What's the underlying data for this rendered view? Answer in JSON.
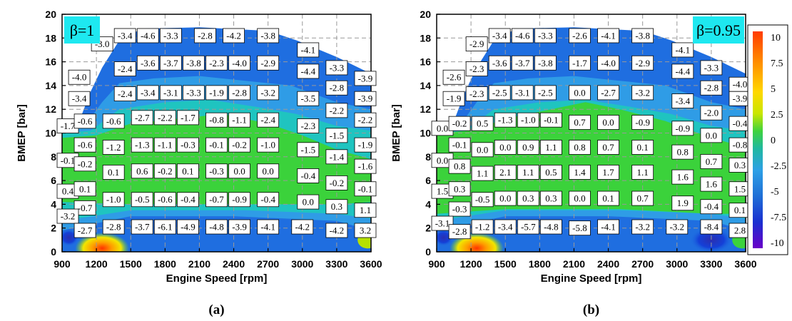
{
  "chart_data": [
    {
      "type": "heatmap",
      "panel_label": "(a)",
      "badge": "β=1",
      "xlabel": "Engine Speed [rpm]",
      "ylabel": "BMEP [bar]",
      "x_ticks": [
        "900",
        "1200",
        "1500",
        "1800",
        "2100",
        "2400",
        "2700",
        "3000",
        "3300",
        "3600"
      ],
      "y_ticks": [
        "0",
        "2",
        "4",
        "6",
        "8",
        "10",
        "12",
        "14",
        "16",
        "18",
        "20"
      ],
      "xlim": [
        900,
        3600
      ],
      "ylim": [
        0,
        20
      ],
      "cells": [
        {
          "x": 1250,
          "y": 17.5,
          "v": "-3.0"
        },
        {
          "x": 1450,
          "y": 18.2,
          "v": "-3.4"
        },
        {
          "x": 1650,
          "y": 18.2,
          "v": "-4.6"
        },
        {
          "x": 1850,
          "y": 18.2,
          "v": "-3.3"
        },
        {
          "x": 2150,
          "y": 18.2,
          "v": "-2.8"
        },
        {
          "x": 2400,
          "y": 18.2,
          "v": "-4.2"
        },
        {
          "x": 2700,
          "y": 18.2,
          "v": "-3.8"
        },
        {
          "x": 3050,
          "y": 17.0,
          "v": "-4.1"
        },
        {
          "x": 1450,
          "y": 15.4,
          "v": "-2.4"
        },
        {
          "x": 1650,
          "y": 15.9,
          "v": "-3.6"
        },
        {
          "x": 1850,
          "y": 15.9,
          "v": "-3.7"
        },
        {
          "x": 2050,
          "y": 15.9,
          "v": "-3.8"
        },
        {
          "x": 2250,
          "y": 15.9,
          "v": "-2.3"
        },
        {
          "x": 2450,
          "y": 15.9,
          "v": "-4.0"
        },
        {
          "x": 2700,
          "y": 15.9,
          "v": "-2.9"
        },
        {
          "x": 3050,
          "y": 15.2,
          "v": "-4.4"
        },
        {
          "x": 1050,
          "y": 14.7,
          "v": "-4.0"
        },
        {
          "x": 3300,
          "y": 15.5,
          "v": "-3.3"
        },
        {
          "x": 3550,
          "y": 14.6,
          "v": "-3.9"
        },
        {
          "x": 3300,
          "y": 13.8,
          "v": "-2.8"
        },
        {
          "x": 3550,
          "y": 12.9,
          "v": "-3.9"
        },
        {
          "x": 1050,
          "y": 12.9,
          "v": "-3.4"
        },
        {
          "x": 1450,
          "y": 13.3,
          "v": "-2.4"
        },
        {
          "x": 1650,
          "y": 13.4,
          "v": "-3.4"
        },
        {
          "x": 1850,
          "y": 13.4,
          "v": "-3.1"
        },
        {
          "x": 2050,
          "y": 13.4,
          "v": "-3.3"
        },
        {
          "x": 2250,
          "y": 13.4,
          "v": "-1.9"
        },
        {
          "x": 2450,
          "y": 13.4,
          "v": "-2.8"
        },
        {
          "x": 2700,
          "y": 13.4,
          "v": "-3.2"
        },
        {
          "x": 3050,
          "y": 12.9,
          "v": "-3.5"
        },
        {
          "x": 3300,
          "y": 11.9,
          "v": "-2.2"
        },
        {
          "x": 3550,
          "y": 11.1,
          "v": "-2.2"
        },
        {
          "x": 950,
          "y": 10.6,
          "v": "-1.7"
        },
        {
          "x": 1100,
          "y": 11.0,
          "v": "-0.6"
        },
        {
          "x": 1350,
          "y": 11.0,
          "v": "-0.6"
        },
        {
          "x": 1600,
          "y": 11.3,
          "v": "-2.7"
        },
        {
          "x": 1800,
          "y": 11.3,
          "v": "-2.2"
        },
        {
          "x": 2000,
          "y": 11.3,
          "v": "-1.7"
        },
        {
          "x": 2250,
          "y": 11.1,
          "v": "-0.8"
        },
        {
          "x": 2450,
          "y": 11.1,
          "v": "-1.1"
        },
        {
          "x": 2700,
          "y": 11.1,
          "v": "-2.4"
        },
        {
          "x": 3050,
          "y": 10.6,
          "v": "-2.3"
        },
        {
          "x": 3300,
          "y": 9.8,
          "v": "-1.5"
        },
        {
          "x": 3550,
          "y": 9.0,
          "v": "-1.9"
        },
        {
          "x": 1100,
          "y": 9.0,
          "v": "-0.6"
        },
        {
          "x": 1350,
          "y": 8.8,
          "v": "-1.2"
        },
        {
          "x": 1600,
          "y": 9.0,
          "v": "-1.3"
        },
        {
          "x": 1800,
          "y": 9.0,
          "v": "-1.1"
        },
        {
          "x": 2000,
          "y": 9.0,
          "v": "-0.3"
        },
        {
          "x": 2250,
          "y": 9.0,
          "v": "-0.1"
        },
        {
          "x": 2450,
          "y": 9.0,
          "v": "-0.2"
        },
        {
          "x": 2700,
          "y": 9.0,
          "v": "-1.0"
        },
        {
          "x": 3050,
          "y": 8.6,
          "v": "-1.5"
        },
        {
          "x": 3300,
          "y": 8.0,
          "v": "-1.4"
        },
        {
          "x": 3550,
          "y": 7.2,
          "v": "-1.6"
        },
        {
          "x": 950,
          "y": 7.7,
          "v": "-0.1"
        },
        {
          "x": 1100,
          "y": 7.4,
          "v": "-0.2"
        },
        {
          "x": 1350,
          "y": 6.7,
          "v": "0.1"
        },
        {
          "x": 1600,
          "y": 6.8,
          "v": "0.6"
        },
        {
          "x": 1800,
          "y": 6.8,
          "v": "-0.2"
        },
        {
          "x": 2000,
          "y": 6.8,
          "v": "0.1"
        },
        {
          "x": 2250,
          "y": 6.8,
          "v": "-0.3"
        },
        {
          "x": 2450,
          "y": 6.8,
          "v": "0.0"
        },
        {
          "x": 2700,
          "y": 6.8,
          "v": "0.0"
        },
        {
          "x": 3050,
          "y": 6.4,
          "v": "-0.4"
        },
        {
          "x": 3300,
          "y": 5.8,
          "v": "-0.2"
        },
        {
          "x": 3550,
          "y": 5.3,
          "v": "-0.1"
        },
        {
          "x": 950,
          "y": 5.1,
          "v": "0.4"
        },
        {
          "x": 1100,
          "y": 5.3,
          "v": "0.1"
        },
        {
          "x": 1350,
          "y": 4.4,
          "v": "-1.0"
        },
        {
          "x": 1600,
          "y": 4.4,
          "v": "-0.5"
        },
        {
          "x": 1800,
          "y": 4.4,
          "v": "-0.6"
        },
        {
          "x": 2000,
          "y": 4.4,
          "v": "-0.4"
        },
        {
          "x": 2250,
          "y": 4.4,
          "v": "-0.7"
        },
        {
          "x": 2450,
          "y": 4.4,
          "v": "-0.9"
        },
        {
          "x": 2700,
          "y": 4.4,
          "v": "-0.4"
        },
        {
          "x": 3050,
          "y": 4.2,
          "v": "0.0"
        },
        {
          "x": 3300,
          "y": 3.8,
          "v": "0.3"
        },
        {
          "x": 3550,
          "y": 3.5,
          "v": "1.1"
        },
        {
          "x": 1100,
          "y": 3.7,
          "v": "-0.7"
        },
        {
          "x": 950,
          "y": 3.0,
          "v": "-3.2"
        },
        {
          "x": 1100,
          "y": 1.8,
          "v": "-2.7"
        },
        {
          "x": 1350,
          "y": 2.1,
          "v": "-2.8"
        },
        {
          "x": 1600,
          "y": 2.1,
          "v": "-3.7"
        },
        {
          "x": 1800,
          "y": 2.1,
          "v": "-6.1"
        },
        {
          "x": 2000,
          "y": 2.1,
          "v": "-4.9"
        },
        {
          "x": 2250,
          "y": 2.1,
          "v": "-4.8"
        },
        {
          "x": 2450,
          "y": 2.1,
          "v": "-3.9"
        },
        {
          "x": 2700,
          "y": 2.1,
          "v": "-4.1"
        },
        {
          "x": 3000,
          "y": 2.1,
          "v": "-4.2"
        },
        {
          "x": 3300,
          "y": 1.8,
          "v": "-4.2"
        },
        {
          "x": 3550,
          "y": 1.8,
          "v": "3.2"
        }
      ]
    },
    {
      "type": "heatmap",
      "panel_label": "(b)",
      "badge": "β=0.95",
      "xlabel": "Engine Speed [rpm]",
      "ylabel": "BMEP [bar]",
      "x_ticks": [
        "900",
        "1200",
        "1500",
        "1800",
        "2100",
        "2400",
        "2700",
        "3000",
        "3300",
        "3600"
      ],
      "y_ticks": [
        "0",
        "2",
        "4",
        "6",
        "8",
        "10",
        "12",
        "14",
        "16",
        "18",
        "20"
      ],
      "xlim": [
        900,
        3600
      ],
      "ylim": [
        0,
        20
      ],
      "colorbar": {
        "ticks": [
          "10",
          "7.5",
          "5",
          "2.5",
          "0",
          "-2.5",
          "-5",
          "-7.5",
          "-10"
        ],
        "range": [
          -10,
          10
        ]
      },
      "cells": [
        {
          "x": 1250,
          "y": 17.5,
          "v": "-2.9"
        },
        {
          "x": 1450,
          "y": 18.2,
          "v": "-3.4"
        },
        {
          "x": 1650,
          "y": 18.2,
          "v": "-4.6"
        },
        {
          "x": 1850,
          "y": 18.2,
          "v": "-3.3"
        },
        {
          "x": 2150,
          "y": 18.2,
          "v": "-2.6"
        },
        {
          "x": 2400,
          "y": 18.2,
          "v": "-4.1"
        },
        {
          "x": 2700,
          "y": 18.2,
          "v": "-3.8"
        },
        {
          "x": 3050,
          "y": 17.0,
          "v": "-4.1"
        },
        {
          "x": 1250,
          "y": 15.4,
          "v": "-2.3"
        },
        {
          "x": 1450,
          "y": 15.9,
          "v": "-3.6"
        },
        {
          "x": 1650,
          "y": 15.9,
          "v": "-3.7"
        },
        {
          "x": 1850,
          "y": 15.9,
          "v": "-3.8"
        },
        {
          "x": 2150,
          "y": 15.9,
          "v": "-1.7"
        },
        {
          "x": 2400,
          "y": 15.9,
          "v": "-4.0"
        },
        {
          "x": 2700,
          "y": 15.9,
          "v": "-2.9"
        },
        {
          "x": 3050,
          "y": 15.2,
          "v": "-4.4"
        },
        {
          "x": 1050,
          "y": 14.7,
          "v": "-2.6"
        },
        {
          "x": 3300,
          "y": 15.5,
          "v": "-3.3"
        },
        {
          "x": 3550,
          "y": 14.1,
          "v": "-4.0"
        },
        {
          "x": 3300,
          "y": 13.8,
          "v": "-2.8"
        },
        {
          "x": 3550,
          "y": 12.9,
          "v": "-3.9"
        },
        {
          "x": 1050,
          "y": 12.9,
          "v": "-1.9"
        },
        {
          "x": 1250,
          "y": 13.3,
          "v": "-2.3"
        },
        {
          "x": 1450,
          "y": 13.4,
          "v": "-2.5"
        },
        {
          "x": 1650,
          "y": 13.4,
          "v": "-3.1"
        },
        {
          "x": 1850,
          "y": 13.4,
          "v": "-2.5"
        },
        {
          "x": 2150,
          "y": 13.4,
          "v": "0.0"
        },
        {
          "x": 2400,
          "y": 13.4,
          "v": "-2.7"
        },
        {
          "x": 2700,
          "y": 13.4,
          "v": "-3.2"
        },
        {
          "x": 3050,
          "y": 12.7,
          "v": "-3.4"
        },
        {
          "x": 3300,
          "y": 11.7,
          "v": "-2.0"
        },
        {
          "x": 3550,
          "y": 10.8,
          "v": "-0.4"
        },
        {
          "x": 950,
          "y": 10.4,
          "v": "0.0"
        },
        {
          "x": 1100,
          "y": 10.8,
          "v": "-0.2"
        },
        {
          "x": 1300,
          "y": 10.8,
          "v": "0.5"
        },
        {
          "x": 1500,
          "y": 11.1,
          "v": "-1.3"
        },
        {
          "x": 1700,
          "y": 11.1,
          "v": "-1.0"
        },
        {
          "x": 1900,
          "y": 11.1,
          "v": "-0.1"
        },
        {
          "x": 2150,
          "y": 10.9,
          "v": "0.7"
        },
        {
          "x": 2400,
          "y": 10.9,
          "v": "0.0"
        },
        {
          "x": 2700,
          "y": 10.9,
          "v": "-0.9"
        },
        {
          "x": 3050,
          "y": 10.4,
          "v": "-0.9"
        },
        {
          "x": 3300,
          "y": 9.8,
          "v": "0.0"
        },
        {
          "x": 3550,
          "y": 9.0,
          "v": "-0.8"
        },
        {
          "x": 1100,
          "y": 9.0,
          "v": "-0.1"
        },
        {
          "x": 1300,
          "y": 8.6,
          "v": "0.0"
        },
        {
          "x": 1500,
          "y": 8.8,
          "v": "0.0"
        },
        {
          "x": 1700,
          "y": 8.8,
          "v": "0.9"
        },
        {
          "x": 1900,
          "y": 8.8,
          "v": "1.1"
        },
        {
          "x": 2150,
          "y": 8.8,
          "v": "0.8"
        },
        {
          "x": 2400,
          "y": 8.8,
          "v": "0.7"
        },
        {
          "x": 2700,
          "y": 8.8,
          "v": "0.1"
        },
        {
          "x": 3050,
          "y": 8.4,
          "v": "0.8"
        },
        {
          "x": 3300,
          "y": 7.6,
          "v": "0.7"
        },
        {
          "x": 3550,
          "y": 7.3,
          "v": "0.3"
        },
        {
          "x": 950,
          "y": 7.7,
          "v": "0.0"
        },
        {
          "x": 1100,
          "y": 7.2,
          "v": "0.8"
        },
        {
          "x": 1300,
          "y": 6.6,
          "v": "1.1"
        },
        {
          "x": 1500,
          "y": 6.7,
          "v": "2.1"
        },
        {
          "x": 1700,
          "y": 6.7,
          "v": "1.1"
        },
        {
          "x": 1900,
          "y": 6.7,
          "v": "0.5"
        },
        {
          "x": 2150,
          "y": 6.7,
          "v": "1.4"
        },
        {
          "x": 2400,
          "y": 6.7,
          "v": "1.7"
        },
        {
          "x": 2700,
          "y": 6.7,
          "v": "1.1"
        },
        {
          "x": 3050,
          "y": 6.3,
          "v": "1.6"
        },
        {
          "x": 3300,
          "y": 5.7,
          "v": "1.6"
        },
        {
          "x": 3550,
          "y": 5.3,
          "v": "1.5"
        },
        {
          "x": 950,
          "y": 5.1,
          "v": "1.5"
        },
        {
          "x": 1100,
          "y": 5.3,
          "v": "0.3"
        },
        {
          "x": 1300,
          "y": 4.4,
          "v": "-0.5"
        },
        {
          "x": 1500,
          "y": 4.5,
          "v": "0.0"
        },
        {
          "x": 1700,
          "y": 4.5,
          "v": "0.3"
        },
        {
          "x": 1900,
          "y": 4.5,
          "v": "0.3"
        },
        {
          "x": 2150,
          "y": 4.5,
          "v": "0.0"
        },
        {
          "x": 2400,
          "y": 4.5,
          "v": "0.1"
        },
        {
          "x": 2700,
          "y": 4.5,
          "v": "0.7"
        },
        {
          "x": 3050,
          "y": 4.1,
          "v": "1.9"
        },
        {
          "x": 3300,
          "y": 3.8,
          "v": "-0.4"
        },
        {
          "x": 3550,
          "y": 3.5,
          "v": "0.1"
        },
        {
          "x": 1100,
          "y": 3.6,
          "v": "-0.3"
        },
        {
          "x": 950,
          "y": 2.4,
          "v": "-3.1"
        },
        {
          "x": 1100,
          "y": 1.7,
          "v": "-2.8"
        },
        {
          "x": 1300,
          "y": 2.1,
          "v": "-1.2"
        },
        {
          "x": 1500,
          "y": 2.1,
          "v": "-3.4"
        },
        {
          "x": 1700,
          "y": 2.1,
          "v": "-5.7"
        },
        {
          "x": 1900,
          "y": 2.1,
          "v": "-4.8"
        },
        {
          "x": 2150,
          "y": 2.0,
          "v": "-5.8"
        },
        {
          "x": 2400,
          "y": 2.1,
          "v": "-4.1"
        },
        {
          "x": 2700,
          "y": 2.1,
          "v": "-3.2"
        },
        {
          "x": 3000,
          "y": 2.1,
          "v": "-3.2"
        },
        {
          "x": 3300,
          "y": 2.1,
          "v": "-8.4"
        },
        {
          "x": 3550,
          "y": 1.8,
          "v": "2.8"
        }
      ]
    }
  ]
}
